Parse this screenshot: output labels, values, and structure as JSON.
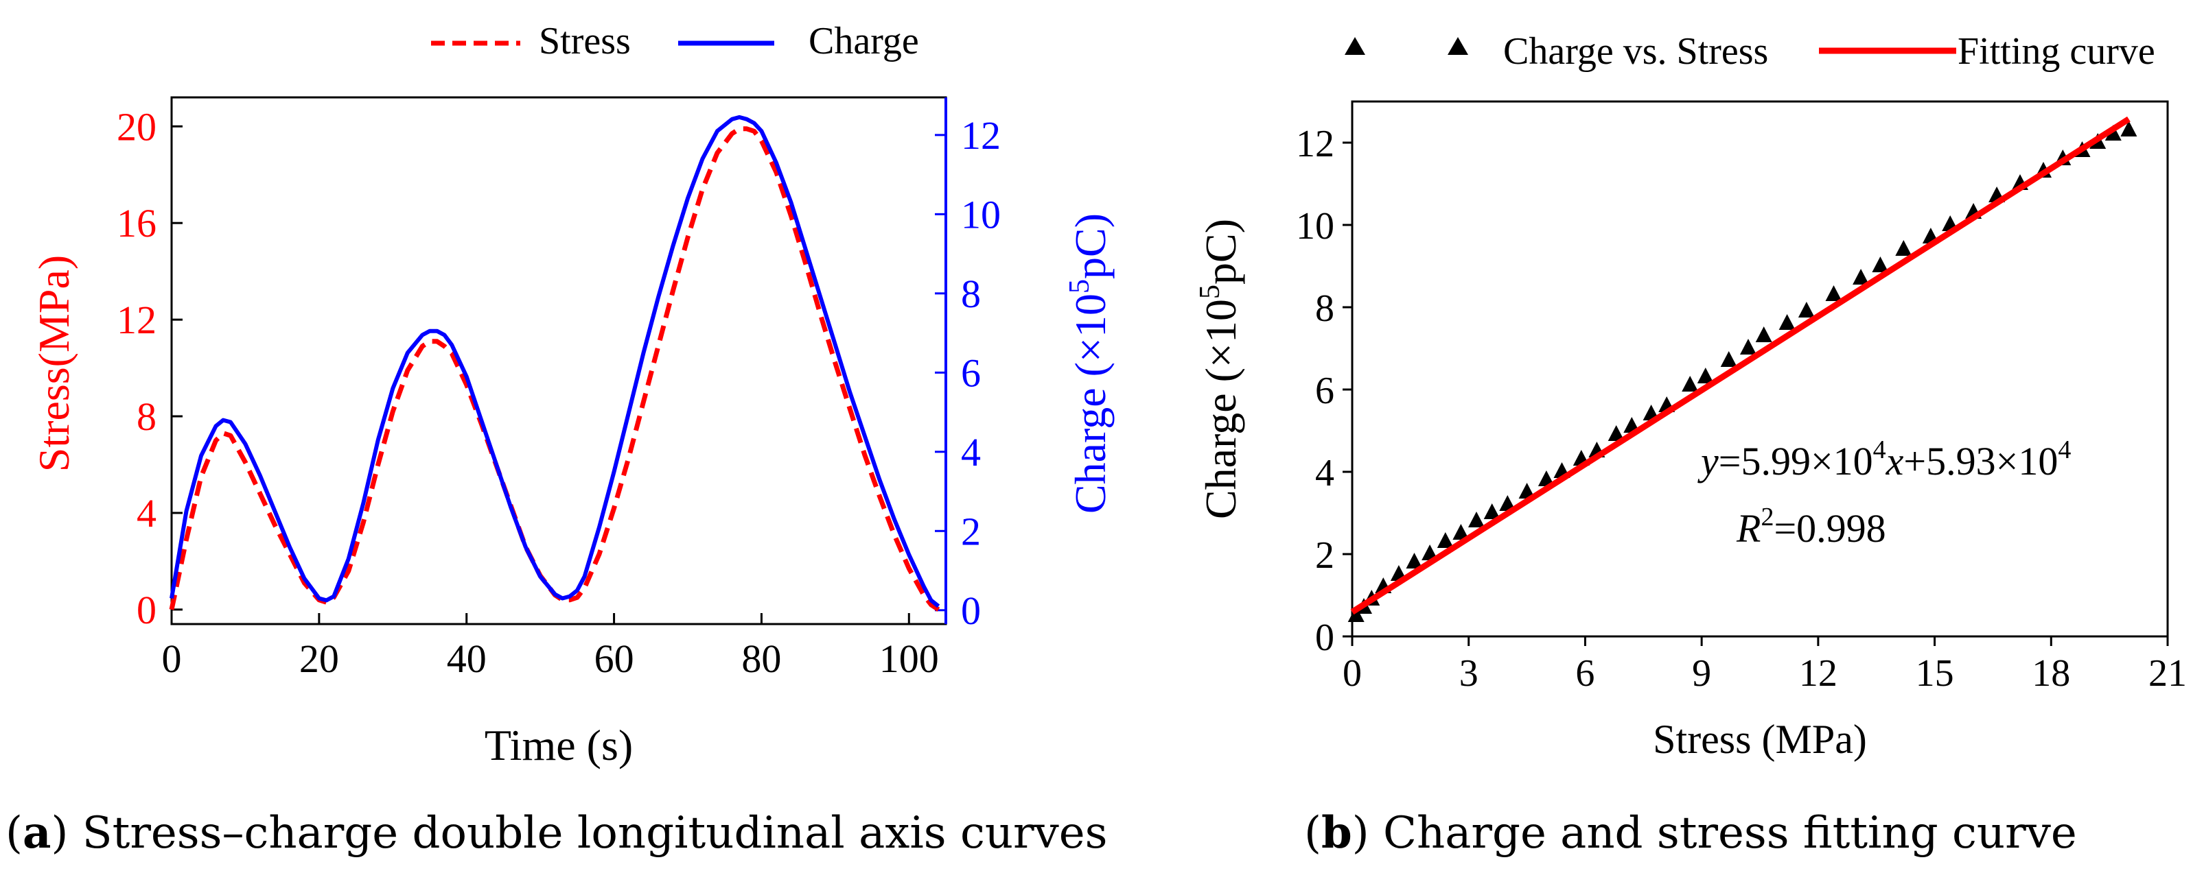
{
  "chart_data": [
    {
      "id": "a",
      "type": "line",
      "caption_label": "a",
      "caption_text": " Stress–charge double longitudinal axis curves",
      "xlabel": "Time (s)",
      "ylabel_left": "Stress(MPa)",
      "ylabel_right_prefix": "Charge (×10",
      "ylabel_right_sup": "5",
      "ylabel_right_suffix": "pC)",
      "xlim": [
        0,
        105
      ],
      "ylim_left": [
        -0.6,
        21.2
      ],
      "ylim_right": [
        -0.35,
        12.95
      ],
      "xticks": [
        0,
        20,
        40,
        60,
        80,
        100
      ],
      "xtick_labels": [
        "0",
        "20",
        "40",
        "60",
        "80",
        "100"
      ],
      "yticks_left": [
        0,
        4,
        8,
        12,
        16,
        20
      ],
      "ytick_labels_left": [
        "0",
        "4",
        "8",
        "12",
        "16",
        "20"
      ],
      "yticks_right": [
        0,
        2,
        4,
        6,
        8,
        10,
        12
      ],
      "ytick_labels_right": [
        "0",
        "2",
        "4",
        "6",
        "8",
        "10",
        "12"
      ],
      "legend": [
        "Stress",
        "Charge"
      ],
      "colors": {
        "stress": "#ff0000",
        "charge": "#0000ff",
        "axis": "#000000"
      },
      "series": [
        {
          "name": "Stress",
          "axis": "left",
          "style": "dashed",
          "x": [
            0,
            2,
            4,
            6,
            7,
            8,
            10,
            12,
            14,
            16,
            18,
            20,
            21,
            22,
            24,
            26,
            28,
            30,
            32,
            34,
            35,
            36,
            37,
            38,
            40,
            42,
            44,
            46,
            48,
            50,
            52,
            53,
            54,
            55,
            56,
            58,
            60,
            62,
            64,
            66,
            68,
            70,
            72,
            74,
            76,
            77,
            78,
            79,
            80,
            82,
            84,
            86,
            88,
            90,
            92,
            94,
            96,
            98,
            100,
            102,
            103,
            104
          ],
          "y": [
            0.0,
            2.9,
            5.5,
            7.0,
            7.3,
            7.2,
            6.1,
            4.8,
            3.5,
            2.3,
            1.1,
            0.4,
            0.3,
            0.5,
            1.6,
            3.6,
            6.0,
            8.2,
            9.9,
            10.9,
            11.1,
            11.1,
            10.9,
            10.6,
            9.3,
            7.7,
            6.0,
            4.3,
            2.6,
            1.4,
            0.6,
            0.4,
            0.4,
            0.5,
            0.9,
            2.3,
            4.2,
            6.3,
            8.6,
            10.9,
            13.2,
            15.4,
            17.4,
            18.9,
            19.7,
            19.9,
            19.9,
            19.8,
            19.4,
            18.1,
            16.3,
            14.3,
            12.2,
            10.2,
            8.3,
            6.4,
            4.7,
            3.1,
            1.7,
            0.6,
            0.2,
            0.0
          ]
        },
        {
          "name": "Charge",
          "axis": "right",
          "style": "solid",
          "x": [
            0,
            2,
            4,
            6,
            7,
            8,
            10,
            12,
            14,
            16,
            18,
            20,
            21,
            22,
            24,
            26,
            28,
            30,
            32,
            34,
            35,
            36,
            37,
            38,
            40,
            42,
            44,
            46,
            48,
            50,
            52,
            53,
            54,
            55,
            56,
            58,
            60,
            62,
            64,
            66,
            68,
            70,
            72,
            74,
            76,
            77,
            78,
            79,
            80,
            82,
            84,
            86,
            88,
            90,
            92,
            94,
            96,
            98,
            100,
            102,
            103,
            104
          ],
          "y": [
            0.3,
            2.5,
            3.9,
            4.65,
            4.8,
            4.75,
            4.2,
            3.4,
            2.5,
            1.6,
            0.8,
            0.3,
            0.25,
            0.35,
            1.3,
            2.7,
            4.3,
            5.6,
            6.5,
            6.95,
            7.05,
            7.05,
            6.95,
            6.7,
            5.9,
            4.8,
            3.7,
            2.6,
            1.6,
            0.85,
            0.4,
            0.3,
            0.35,
            0.5,
            0.85,
            2.1,
            3.5,
            5.0,
            6.5,
            7.9,
            9.2,
            10.4,
            11.4,
            12.1,
            12.4,
            12.45,
            12.4,
            12.3,
            12.1,
            11.3,
            10.3,
            9.1,
            7.9,
            6.7,
            5.5,
            4.4,
            3.3,
            2.3,
            1.4,
            0.6,
            0.25,
            0.1
          ]
        }
      ]
    },
    {
      "id": "b",
      "type": "scatter",
      "caption_label": "b",
      "caption_text": " Charge and stress fitting curve",
      "xlabel": "Stress (MPa)",
      "ylabel_prefix": "Charge  (×10",
      "ylabel_sup": "5",
      "ylabel_suffix": "pC)",
      "xlim": [
        0,
        21
      ],
      "ylim": [
        0,
        13
      ],
      "xticks": [
        0,
        3,
        6,
        9,
        12,
        15,
        18,
        21
      ],
      "xtick_labels": [
        "0",
        "3",
        "6",
        "9",
        "12",
        "15",
        "18",
        "21"
      ],
      "yticks": [
        0,
        2,
        4,
        6,
        8,
        10,
        12
      ],
      "ytick_labels": [
        "0",
        "2",
        "4",
        "6",
        "8",
        "10",
        "12"
      ],
      "legend": [
        "Charge vs. Stress",
        "Fitting curve"
      ],
      "colors": {
        "points": "#000000",
        "fit": "#ff0000",
        "axis": "#000000"
      },
      "equation": {
        "y_var": "y",
        "eq_part1": "=5.99×10",
        "eq_exp1": "4",
        "x_var": "x",
        "eq_part2": "+5.93×10",
        "eq_exp2": "4",
        "r_var": "R",
        "r_exp": "2",
        "r_value": "=0.998"
      },
      "fit": {
        "slope": 0.599,
        "intercept": 0.593,
        "x_range": [
          0,
          20
        ]
      },
      "series": [
        {
          "name": "Charge vs. Stress",
          "marker": "triangle",
          "x": [
            0.1,
            0.3,
            0.5,
            0.8,
            1.2,
            1.6,
            2.0,
            2.4,
            2.8,
            3.2,
            3.6,
            4.0,
            4.5,
            5.0,
            5.4,
            5.9,
            6.3,
            6.8,
            7.2,
            7.7,
            8.1,
            8.7,
            9.1,
            9.7,
            10.2,
            10.6,
            11.2,
            11.7,
            12.4,
            13.1,
            13.6,
            14.2,
            14.9,
            15.4,
            16.0,
            16.6,
            17.2,
            17.8,
            18.3,
            18.8,
            19.2,
            19.6,
            20.0
          ],
          "y": [
            0.5,
            0.7,
            0.9,
            1.2,
            1.5,
            1.8,
            2.0,
            2.3,
            2.5,
            2.8,
            3.0,
            3.2,
            3.5,
            3.8,
            4.0,
            4.3,
            4.5,
            4.9,
            5.1,
            5.4,
            5.6,
            6.1,
            6.3,
            6.7,
            7.0,
            7.3,
            7.6,
            7.9,
            8.3,
            8.7,
            9.0,
            9.4,
            9.7,
            10.0,
            10.3,
            10.7,
            11.0,
            11.3,
            11.6,
            11.8,
            12.0,
            12.2,
            12.3
          ]
        }
      ]
    }
  ]
}
